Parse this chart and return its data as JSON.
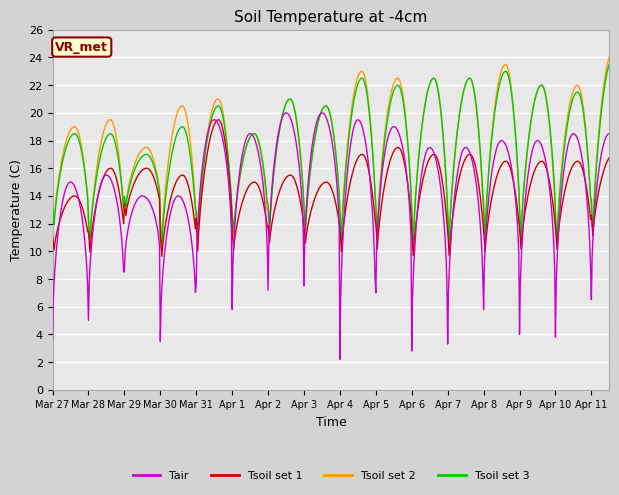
{
  "title": "Soil Temperature at -4cm",
  "xlabel": "Time",
  "ylabel": "Temperature (C)",
  "ylim": [
    0,
    26
  ],
  "background_color": "#e8e8e8",
  "grid_color": "white",
  "annotation_text": "VR_met",
  "annotation_bg": "#ffffcc",
  "annotation_border": "#8b0000",
  "colors": {
    "Tair": "#cc00cc",
    "Tsoil1": "#cc0000",
    "Tsoil2": "#ff9900",
    "Tsoil3": "#00cc00"
  },
  "legend_labels": [
    "Tair",
    "Tsoil set 1",
    "Tsoil set 2",
    "Tsoil set 3"
  ],
  "xtick_labels": [
    "Mar 27",
    "Mar 28",
    "Mar 29",
    "Mar 30",
    "Mar 31",
    "Apr 1",
    "Apr 2",
    "Apr 3",
    "Apr 4",
    "Apr 5",
    "Apr 6",
    "Apr 7",
    "Apr 8",
    "Apr 9",
    "Apr 10",
    "Apr 11"
  ],
  "ytick_vals": [
    0,
    2,
    4,
    6,
    8,
    10,
    12,
    14,
    16,
    18,
    20,
    22,
    24,
    26
  ]
}
